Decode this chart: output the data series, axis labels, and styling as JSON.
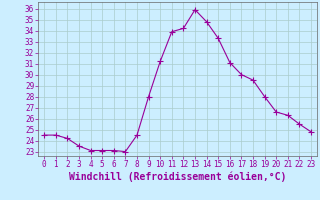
{
  "x": [
    0,
    1,
    2,
    3,
    4,
    5,
    6,
    7,
    8,
    9,
    10,
    11,
    12,
    13,
    14,
    15,
    16,
    17,
    18,
    19,
    20,
    21,
    22,
    23
  ],
  "y": [
    24.5,
    24.5,
    24.2,
    23.5,
    23.1,
    23.1,
    23.1,
    23.0,
    24.5,
    28.0,
    31.2,
    33.9,
    34.2,
    35.9,
    34.8,
    33.3,
    31.1,
    30.0,
    29.5,
    28.0,
    26.6,
    26.3,
    25.5,
    24.8
  ],
  "line_color": "#990099",
  "marker": "+",
  "marker_size": 4,
  "bg_color": "#cceeff",
  "grid_color": "#aacccc",
  "xlabel": "Windchill (Refroidissement éolien,°C)",
  "xlabel_color": "#990099",
  "ylabel_ticks": [
    23,
    24,
    25,
    26,
    27,
    28,
    29,
    30,
    31,
    32,
    33,
    34,
    35,
    36
  ],
  "ylim": [
    22.6,
    36.6
  ],
  "xlim": [
    -0.5,
    23.5
  ],
  "tick_color": "#990099",
  "tick_fontsize": 5.5,
  "xlabel_fontsize": 7.0,
  "linewidth": 0.8
}
